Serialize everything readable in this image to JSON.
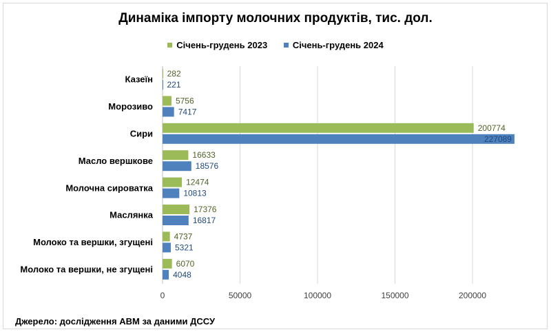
{
  "chart_data": {
    "type": "bar",
    "orientation": "horizontal",
    "title": "Динаміка імпорту молочних продуктів, тис. дол.",
    "categories": [
      "Казеїн",
      "Морозиво",
      "Сири",
      "Масло вершкове",
      "Молочна сироватка",
      "Маслянка",
      "Молоко та вершки, згущені",
      "Молоко та вершки, не згущені"
    ],
    "series": [
      {
        "name": "Січень-грудень 2023",
        "color": "#9bbb59",
        "values": [
          282,
          5756,
          200774,
          16633,
          12474,
          17376,
          4737,
          6070
        ]
      },
      {
        "name": "Січень-грудень 2024",
        "color": "#4f81bd",
        "values": [
          221,
          7417,
          227089,
          18576,
          10813,
          16817,
          5321,
          4048
        ]
      }
    ],
    "xlim": [
      0,
      225000
    ],
    "xticks": [
      0,
      50000,
      100000,
      150000,
      200000
    ],
    "grid": true,
    "legend_position": "top"
  },
  "source": "Джерело: дослідження АВМ за даними ДССУ"
}
